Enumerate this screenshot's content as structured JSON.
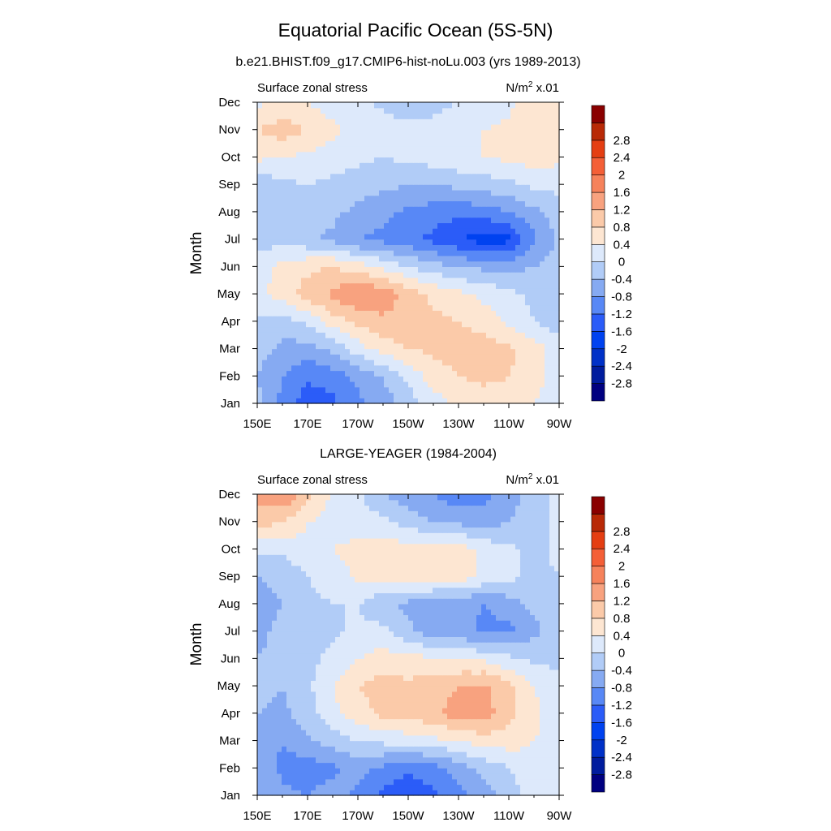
{
  "figure": {
    "title": "Equatorial Pacific Ocean (5S-5N)"
  },
  "colors": {
    "colorbar": [
      "#000080",
      "#001c9e",
      "#0031c8",
      "#0042f0",
      "#2b5cf8",
      "#5888f6",
      "#86aaf2",
      "#b1ccf7",
      "#dde9fb",
      "#fde6d2",
      "#fbcaa9",
      "#f8a27f",
      "#f6825b",
      "#f45f37",
      "#e43e12",
      "#b82906",
      "#8a0000"
    ]
  },
  "chart_data": [
    {
      "type": "heatmap",
      "panel_title": "b.e21.BHIST.f09_g17.CMIP6-hist-noLu.003 (yrs 1989-2013)",
      "left_label": "Surface zonal stress",
      "right_label_base": "N/m",
      "right_label_sup": "2",
      "right_label_suffix": " x.01",
      "ylabel": "Month",
      "xticks": [
        "150E",
        "170E",
        "170W",
        "150W",
        "130W",
        "110W",
        "90W"
      ],
      "yticks": [
        "Jan",
        "Feb",
        "Mar",
        "Apr",
        "May",
        "Jun",
        "Jul",
        "Aug",
        "Sep",
        "Oct",
        "Nov",
        "Dec"
      ],
      "x_lon": [
        150,
        160,
        170,
        180,
        190,
        200,
        210,
        220,
        230,
        240,
        250,
        260,
        270
      ],
      "colorbar_levels": [
        "-2.8",
        "-2.4",
        "-2",
        "-1.6",
        "-1.2",
        "-0.8",
        "-0.4",
        "0",
        "0.4",
        "0.8",
        "1.2",
        "1.6",
        "2",
        "2.4",
        "2.8"
      ],
      "z": [
        [
          -0.3,
          -0.9,
          -1.5,
          -1.3,
          -0.9,
          -0.6,
          -0.2,
          0.2,
          0.5,
          0.6,
          0.6,
          0.4,
          0.1
        ],
        [
          -0.4,
          -0.8,
          -1.1,
          -1.0,
          -0.7,
          -0.4,
          0.1,
          0.6,
          0.8,
          0.9,
          0.8,
          0.6,
          0.2
        ],
        [
          -0.2,
          -0.5,
          -0.6,
          -0.3,
          0.2,
          0.6,
          0.8,
          0.9,
          1.0,
          1.0,
          0.9,
          0.6,
          0.2
        ],
        [
          -0.1,
          -0.2,
          0.1,
          0.6,
          0.9,
          1.1,
          1.0,
          0.9,
          0.8,
          0.6,
          0.3,
          0.0,
          -0.2
        ],
        [
          0.3,
          0.6,
          1.0,
          1.3,
          1.6,
          1.5,
          1.0,
          0.7,
          0.5,
          0.3,
          0.1,
          -0.1,
          -0.2
        ],
        [
          0.2,
          0.5,
          0.7,
          0.8,
          0.6,
          0.3,
          0.0,
          -0.2,
          -0.4,
          -0.5,
          -0.5,
          -0.4,
          -0.2
        ],
        [
          -0.2,
          -0.1,
          -0.3,
          -0.5,
          -0.8,
          -0.9,
          -1.1,
          -1.3,
          -1.6,
          -1.8,
          -1.7,
          -0.9,
          -0.3
        ],
        [
          -0.3,
          -0.2,
          -0.2,
          -0.3,
          -0.5,
          -0.7,
          -0.9,
          -1.0,
          -1.1,
          -1.0,
          -0.8,
          -0.5,
          -0.2
        ],
        [
          -0.3,
          -0.1,
          0.0,
          -0.1,
          -0.2,
          -0.3,
          -0.4,
          -0.4,
          -0.3,
          -0.2,
          -0.1,
          0.1,
          0.1
        ],
        [
          0.5,
          0.4,
          0.3,
          0.2,
          0.1,
          0.0,
          0.1,
          0.2,
          0.3,
          0.4,
          0.5,
          0.6,
          0.5
        ],
        [
          0.8,
          1.0,
          0.8,
          0.5,
          0.3,
          0.2,
          0.1,
          0.1,
          0.2,
          0.4,
          0.5,
          0.8,
          0.7
        ],
        [
          0.3,
          0.5,
          0.4,
          0.2,
          0.1,
          -0.1,
          -0.2,
          -0.1,
          0.0,
          0.1,
          0.3,
          0.6,
          0.5
        ]
      ]
    },
    {
      "type": "heatmap",
      "panel_title": "LARGE-YEAGER (1984-2004)",
      "left_label": "Surface zonal stress",
      "right_label_base": "N/m",
      "right_label_sup": "2",
      "right_label_suffix": " x.01",
      "ylabel": "Month",
      "xticks": [
        "150E",
        "170E",
        "170W",
        "150W",
        "130W",
        "110W",
        "90W"
      ],
      "yticks": [
        "Jan",
        "Feb",
        "Mar",
        "Apr",
        "May",
        "Jun",
        "Jul",
        "Aug",
        "Sep",
        "Oct",
        "Nov",
        "Dec"
      ],
      "x_lon": [
        150,
        160,
        170,
        180,
        190,
        200,
        210,
        220,
        230,
        240,
        250,
        260,
        270
      ],
      "colorbar_levels": [
        "-2.8",
        "-2.4",
        "-2",
        "-1.6",
        "-1.2",
        "-0.8",
        "-0.4",
        "0",
        "0.4",
        "0.8",
        "1.2",
        "1.6",
        "2",
        "2.4",
        "2.8"
      ],
      "z": [
        [
          -0.4,
          -0.7,
          -0.8,
          -0.6,
          -0.9,
          -1.3,
          -1.5,
          -1.3,
          -1.0,
          -0.6,
          -0.2,
          0.2,
          0.3
        ],
        [
          -0.5,
          -0.9,
          -1.0,
          -0.9,
          -0.6,
          -0.9,
          -1.1,
          -1.0,
          -0.6,
          -0.3,
          0.0,
          0.3,
          0.3
        ],
        [
          -0.6,
          -0.8,
          -0.5,
          -0.2,
          0.0,
          0.1,
          0.2,
          0.3,
          0.4,
          0.6,
          0.6,
          0.4,
          0.2
        ],
        [
          -0.4,
          -0.5,
          -0.2,
          0.3,
          0.6,
          0.9,
          0.9,
          1.1,
          1.4,
          1.4,
          0.9,
          0.5,
          0.2
        ],
        [
          -0.3,
          -0.4,
          -0.1,
          0.4,
          0.8,
          1.0,
          0.9,
          1.0,
          1.2,
          1.3,
          0.9,
          0.4,
          0.1
        ],
        [
          -0.4,
          -0.3,
          -0.1,
          0.1,
          0.4,
          0.6,
          0.5,
          0.5,
          0.4,
          0.3,
          0.1,
          -0.1,
          -0.1
        ],
        [
          -0.5,
          -0.3,
          -0.2,
          -0.1,
          0.1,
          0.1,
          -0.3,
          -0.6,
          -0.6,
          -0.9,
          -0.9,
          -0.5,
          -0.2
        ],
        [
          -0.6,
          -0.4,
          -0.1,
          0.0,
          0.0,
          -0.3,
          -0.5,
          -0.8,
          -0.7,
          -0.8,
          -0.6,
          -0.3,
          -0.1
        ],
        [
          -0.4,
          -0.3,
          0.0,
          0.2,
          0.5,
          0.5,
          0.6,
          0.8,
          0.6,
          0.3,
          0.1,
          -0.1,
          0.0
        ],
        [
          0.1,
          0.1,
          0.3,
          0.4,
          0.5,
          0.6,
          0.6,
          0.7,
          0.6,
          0.3,
          0.1,
          -0.1,
          0.1
        ],
        [
          1.0,
          0.8,
          0.4,
          0.3,
          0.2,
          0.1,
          -0.2,
          -0.4,
          -0.5,
          -0.6,
          -0.4,
          -0.2,
          0.1
        ],
        [
          1.3,
          1.6,
          0.9,
          0.3,
          0.1,
          -0.4,
          -0.6,
          -0.8,
          -1.1,
          -0.9,
          -0.6,
          -0.2,
          0.1
        ]
      ]
    }
  ]
}
